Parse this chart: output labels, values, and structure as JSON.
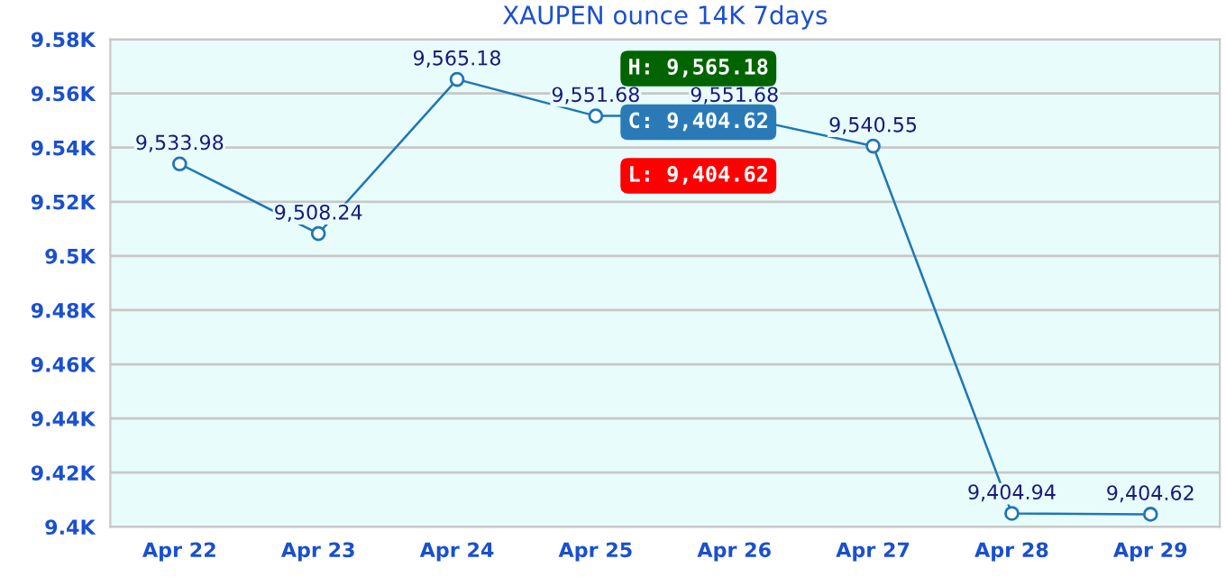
{
  "chart_data": {
    "type": "line",
    "title": "XAUPEN ounce 14K 7days",
    "categories": [
      "Apr 22",
      "Apr 23",
      "Apr 24",
      "Apr 25",
      "Apr 26",
      "Apr 27",
      "Apr 28",
      "Apr 29"
    ],
    "series": [
      {
        "color": "#1f77b4",
        "values": [
          9533.98,
          9508.24,
          9565.18,
          9551.68,
          9551.68,
          9540.55,
          9404.94,
          9404.62
        ],
        "value_labels": [
          "9,533.98",
          "9,508.24",
          "9,565.18",
          "9,551.68",
          "9,551.68",
          "9,540.55",
          "9,404.94",
          "9,404.62"
        ]
      }
    ],
    "ylim": [
      9400,
      9580
    ],
    "yticks": [
      {
        "value": 9400,
        "label": "9.4K"
      },
      {
        "value": 9420,
        "label": "9.42K"
      },
      {
        "value": 9440,
        "label": "9.44K"
      },
      {
        "value": 9460,
        "label": "9.46K"
      },
      {
        "value": 9480,
        "label": "9.48K"
      },
      {
        "value": 9500,
        "label": "9.5K"
      },
      {
        "value": 9520,
        "label": "9.52K"
      },
      {
        "value": 9540,
        "label": "9.54K"
      },
      {
        "value": 9560,
        "label": "9.56K"
      },
      {
        "value": 9580,
        "label": "9.58K"
      }
    ],
    "annotations": [
      "H: 9,565.18",
      "C: 9,404.62",
      "L: 9,404.62"
    ],
    "grid": "y",
    "marker": "circle",
    "line_style": "solid",
    "legend": false
  }
}
